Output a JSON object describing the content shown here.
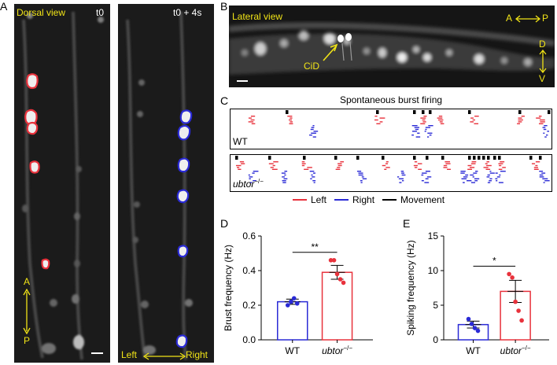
{
  "panel_labels": {
    "a": "A",
    "b": "B",
    "c": "C",
    "d": "D",
    "e": "E"
  },
  "panel_a": {
    "left_title": "Dorsal view",
    "left_time": "t0",
    "right_time": "t0 + 4s",
    "axis_top": "A",
    "axis_bottom": "P",
    "left_label": "Left",
    "right_label": "Right"
  },
  "panel_b": {
    "title": "Lateral view",
    "cell_label": "CiD",
    "ap_left": "A",
    "ap_right": "P",
    "dv_top": "D",
    "dv_bottom": "V"
  },
  "panel_c": {
    "title": "Spontaneous burst firing",
    "row1_label": "WT",
    "row2_label_main": "ubtor",
    "row2_label_sup": "−/−",
    "legend": [
      {
        "label": "Left",
        "color": "#e8323c"
      },
      {
        "label": "Right",
        "color": "#2a2ad6"
      },
      {
        "label": "Movement",
        "color": "#000000"
      }
    ]
  },
  "chart_data": [
    {
      "type": "bar",
      "panel": "D",
      "categories": [
        "WT",
        "ubtor−/−"
      ],
      "values": [
        0.22,
        0.39
      ],
      "sem": [
        0.015,
        0.04
      ],
      "points": [
        [
          0.2,
          0.22,
          0.24,
          0.21
        ],
        [
          0.46,
          0.46,
          0.38,
          0.35,
          0.33
        ]
      ],
      "ylabel": "Brust frequency (Hz)",
      "ylim": [
        0,
        0.6
      ],
      "yticks": [
        "0.0",
        "0.2",
        "0.4",
        "0.6"
      ],
      "significance": "**",
      "colors": [
        "#2a2ad6",
        "#e8323c"
      ]
    },
    {
      "type": "bar",
      "panel": "E",
      "categories": [
        "WT",
        "ubtor−/−"
      ],
      "values": [
        2.2,
        7.0
      ],
      "sem": [
        0.5,
        1.6
      ],
      "points": [
        [
          3.0,
          2.3,
          1.7,
          1.3
        ],
        [
          9.5,
          9.0,
          5.5,
          4.2,
          2.8
        ]
      ],
      "ylabel": "Spiking frequency (Hz)",
      "ylim": [
        0,
        15
      ],
      "yticks": [
        "0",
        "5",
        "10",
        "15"
      ],
      "significance": "*",
      "colors": [
        "#2a2ad6",
        "#e8323c"
      ]
    }
  ]
}
